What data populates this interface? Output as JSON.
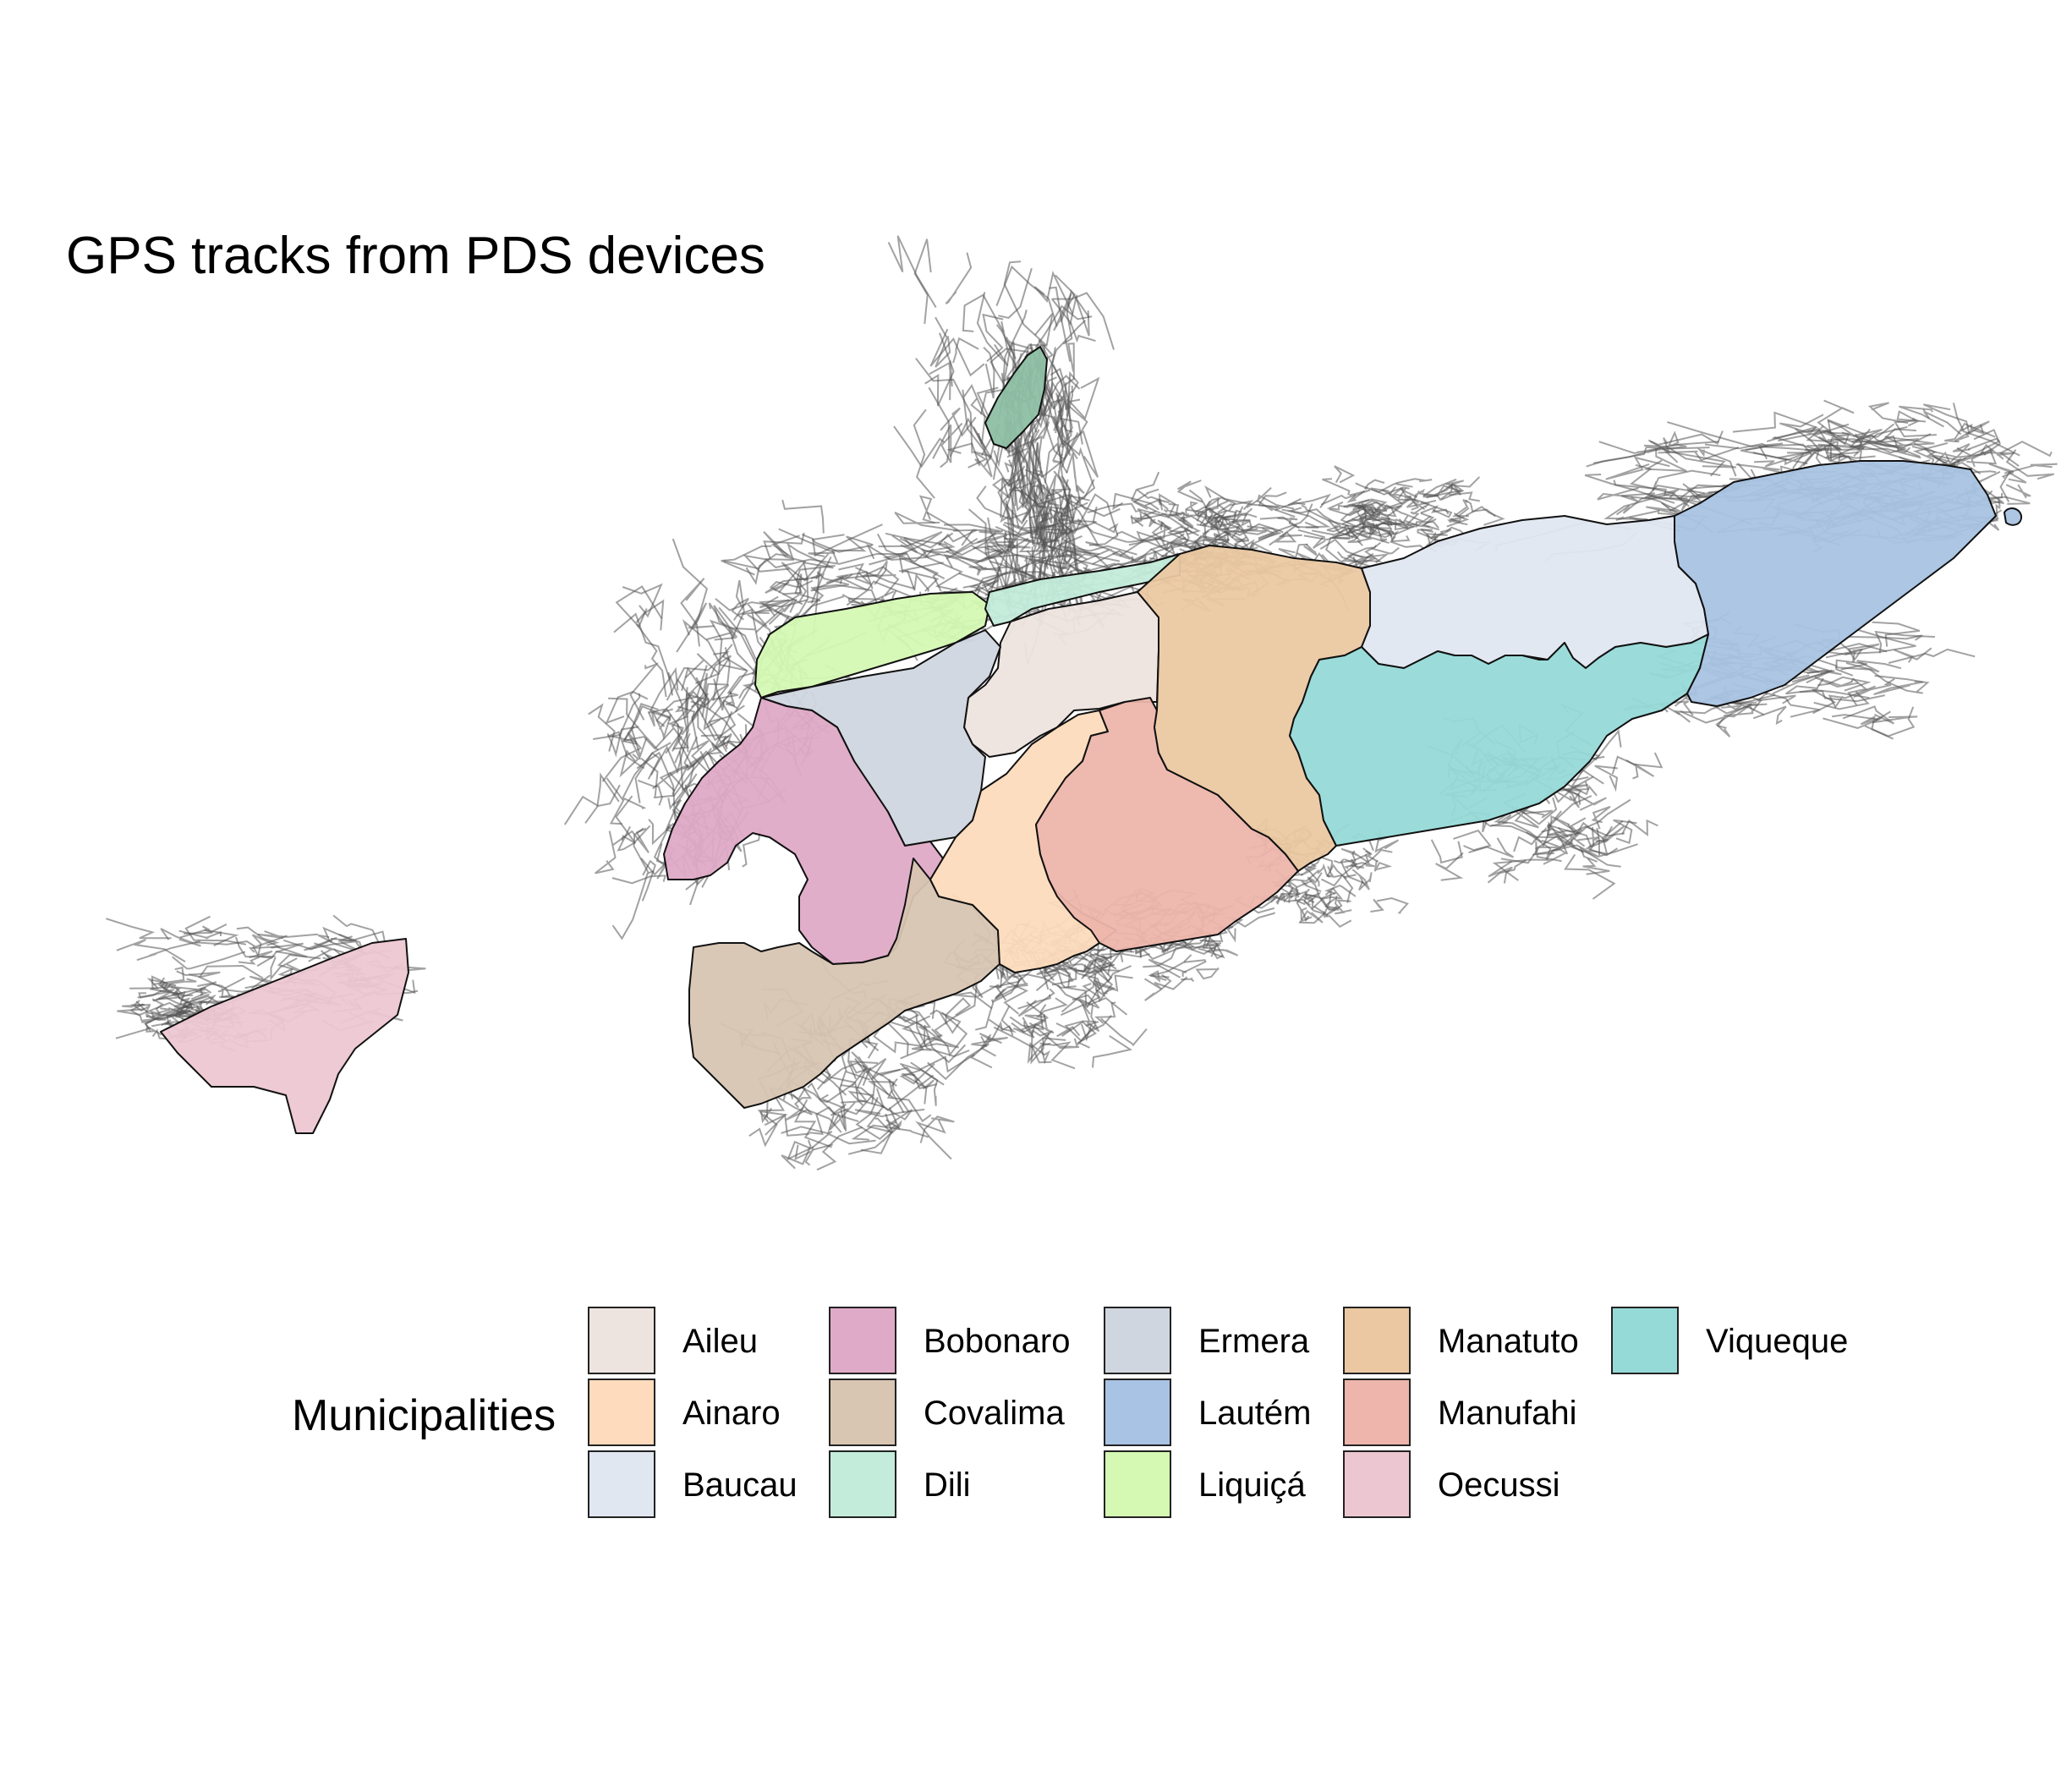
{
  "title": "GPS tracks from PDS devices",
  "legend": {
    "title": "Municipalities",
    "items": [
      {
        "label": "Aileu",
        "color": "#ede4df"
      },
      {
        "label": "Ainaro",
        "color": "#fddbbc"
      },
      {
        "label": "Baucau",
        "color": "#e0e7f1"
      },
      {
        "label": "Bobonaro",
        "color": "#dfaac7"
      },
      {
        "label": "Covalima",
        "color": "#d8c5b2"
      },
      {
        "label": "Dili",
        "color": "#c3ecda"
      },
      {
        "label": "Ermera",
        "color": "#d0d6df"
      },
      {
        "label": "Lautém",
        "color": "#a8c3e3"
      },
      {
        "label": "Liquiçá",
        "color": "#d5f9b3"
      },
      {
        "label": "Manatuto",
        "color": "#ebc8a2"
      },
      {
        "label": "Manufahi",
        "color": "#edb5ab"
      },
      {
        "label": "Oecussi",
        "color": "#ecc7d2"
      },
      {
        "label": "Viqueque",
        "color": "#96dad8"
      }
    ]
  },
  "track_color": "#555555",
  "atauro_color": "#8dbfa4"
}
